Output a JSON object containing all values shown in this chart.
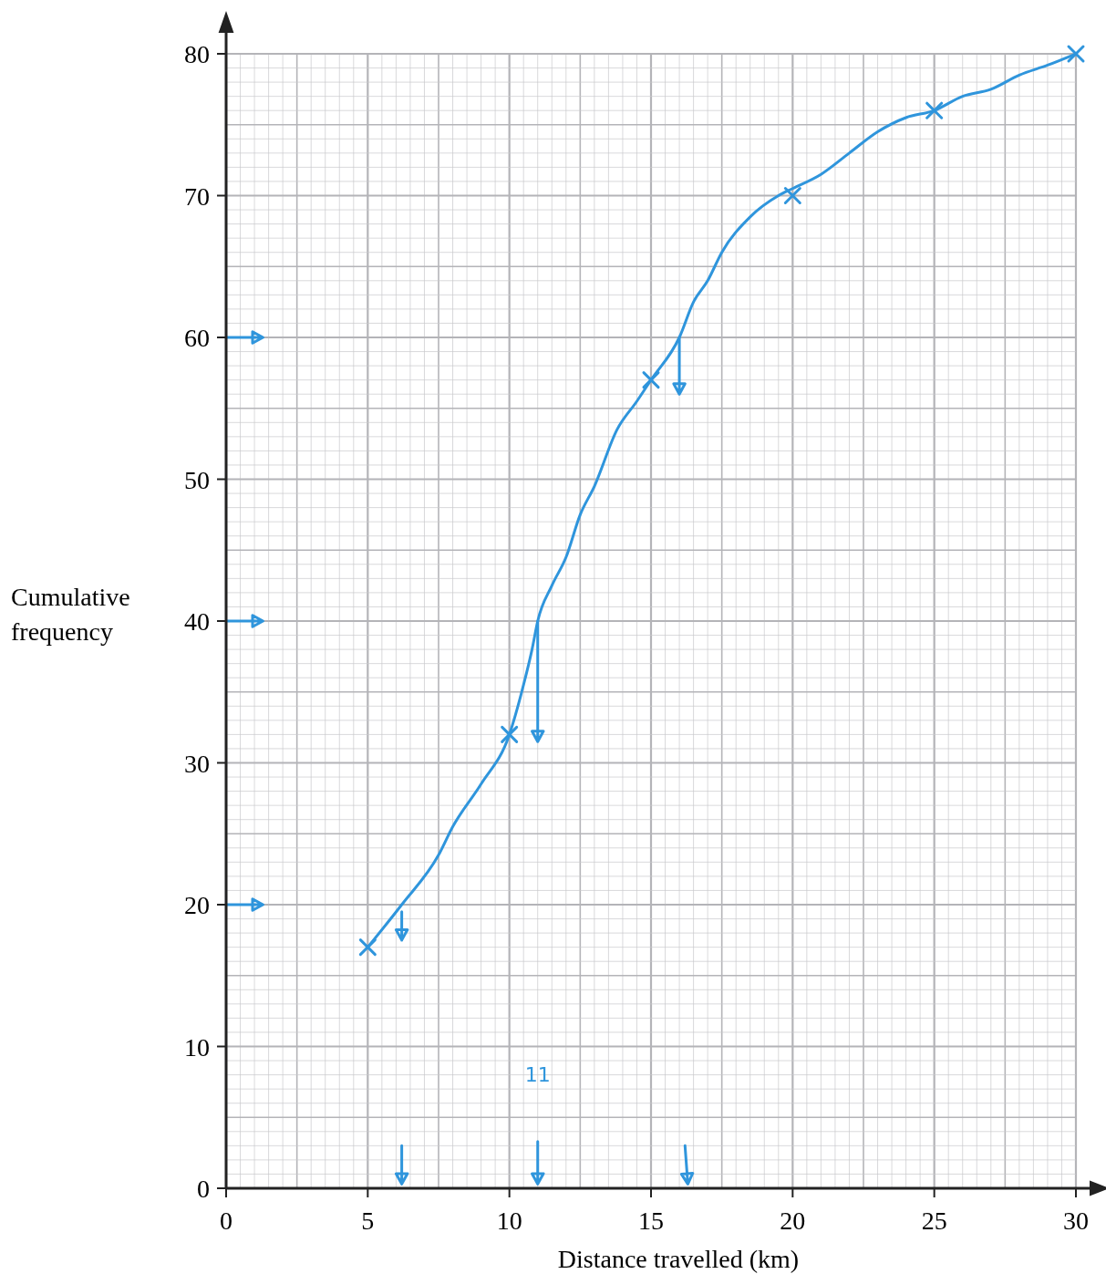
{
  "chart_data": {
    "type": "line",
    "xlabel": "Distance travelled (km)",
    "ylabel": "Cumulative frequency",
    "xlim": [
      0,
      30
    ],
    "ylim": [
      0,
      80
    ],
    "xticks": [
      0,
      5,
      10,
      15,
      20,
      25,
      30
    ],
    "yticks": [
      0,
      10,
      20,
      30,
      40,
      50,
      60,
      70,
      80
    ],
    "grid": true,
    "series": [
      {
        "type": "scatter",
        "marker": "cross",
        "color": "#2f95dc",
        "x": [
          5,
          10,
          15,
          20,
          25,
          30
        ],
        "values": [
          17,
          32,
          57,
          70,
          76,
          80
        ]
      },
      {
        "marker": "none",
        "line_style": "solid",
        "color": "#2f95dc",
        "x": [
          5,
          6.2,
          7.5,
          8,
          9,
          10,
          10.5,
          10.8,
          11,
          11.5,
          12,
          12.5,
          13,
          13.8,
          14.5,
          15,
          16,
          16.5,
          17,
          17.5,
          18.5,
          19.5,
          20,
          21,
          22,
          23,
          24,
          25,
          26,
          27,
          28,
          29,
          30
        ],
        "values": [
          17,
          20,
          23.5,
          25.5,
          28.5,
          32,
          35.5,
          38,
          40,
          42.5,
          44.5,
          47.5,
          49.5,
          53.5,
          55.5,
          57,
          60,
          62.5,
          64,
          66,
          68.5,
          70,
          70.5,
          71.5,
          73,
          74.5,
          75.5,
          76,
          77,
          77.5,
          78.5,
          79.2,
          80
        ]
      }
    ],
    "annotations": [
      "11"
    ]
  }
}
